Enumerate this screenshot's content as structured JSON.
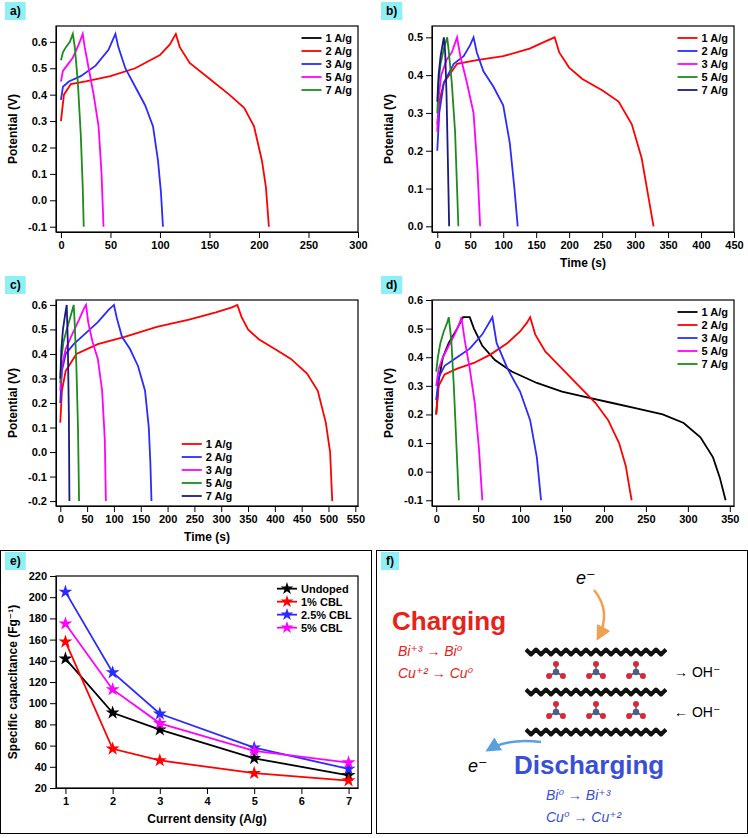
{
  "chart_data": [
    {
      "type": "line",
      "title": "a)",
      "y_label": "Potential (V)",
      "xlim": [
        -5,
        300
      ],
      "xticks": [
        0,
        50,
        100,
        150,
        200,
        250,
        300
      ],
      "ylim": [
        -0.12,
        0.66
      ],
      "yticks": [
        -0.1,
        {
          "value": 0,
          "label": "0.0"
        },
        0.1,
        0.2,
        0.3,
        0.4,
        0.5,
        0.6
      ],
      "grid": false,
      "legend": "upper right",
      "series": [
        {
          "name": "1 A/g",
          "color": "#000000",
          "x": [],
          "values": []
        },
        {
          "name": "2 A/g",
          "color": "#ff0000",
          "x": [
            0,
            3,
            10,
            25,
            50,
            75,
            100,
            110,
            116,
            120,
            130,
            150,
            170,
            185,
            195,
            203,
            207,
            210
          ],
          "values": [
            0.3,
            0.4,
            0.44,
            0.45,
            0.47,
            0.5,
            0.55,
            0.59,
            0.63,
            0.58,
            0.52,
            0.46,
            0.4,
            0.35,
            0.28,
            0.15,
            0.05,
            -0.1
          ]
        },
        {
          "name": "3 A/g",
          "color": "#2b2bff",
          "x": [
            0,
            2,
            8,
            20,
            35,
            48,
            55,
            58,
            65,
            75,
            85,
            93,
            98,
            101,
            103
          ],
          "values": [
            0.38,
            0.43,
            0.45,
            0.47,
            0.51,
            0.57,
            0.63,
            0.58,
            0.5,
            0.43,
            0.36,
            0.28,
            0.15,
            0.03,
            -0.1
          ]
        },
        {
          "name": "5 A/g",
          "color": "#ff00ff",
          "x": [
            0,
            2,
            6,
            12,
            18,
            22,
            24,
            28,
            33,
            38,
            41,
            43
          ],
          "values": [
            0.45,
            0.49,
            0.51,
            0.54,
            0.59,
            0.63,
            0.58,
            0.5,
            0.4,
            0.28,
            0.1,
            -0.1
          ]
        },
        {
          "name": "7 A/g",
          "color": "#1c8c1c",
          "x": [
            0,
            2,
            5,
            9,
            12,
            14,
            17,
            20,
            22,
            23
          ],
          "values": [
            0.53,
            0.56,
            0.58,
            0.6,
            0.63,
            0.58,
            0.45,
            0.25,
            0.05,
            -0.1
          ]
        }
      ]
    },
    {
      "type": "line",
      "title": "b)",
      "x_label": "Time (s)",
      "y_label": "Potential (V)",
      "xlim": [
        -8,
        450
      ],
      "xticks": [
        0,
        50,
        100,
        150,
        200,
        250,
        300,
        350,
        400,
        450
      ],
      "ylim": [
        -0.015,
        0.53
      ],
      "yticks": [
        {
          "value": 0,
          "label": "0.0"
        },
        0.1,
        0.2,
        0.3,
        0.4,
        0.5
      ],
      "grid": false,
      "legend": "upper right",
      "series": [
        {
          "name": "1 A/g",
          "color": "#ff0000",
          "x": [
            0,
            3,
            10,
            30,
            60,
            100,
            140,
            165,
            178,
            185,
            200,
            220,
            250,
            275,
            295,
            310,
            320,
            328
          ],
          "values": [
            0.27,
            0.33,
            0.38,
            0.43,
            0.44,
            0.45,
            0.47,
            0.49,
            0.5,
            0.46,
            0.42,
            0.39,
            0.36,
            0.33,
            0.27,
            0.18,
            0.08,
            0.0
          ]
        },
        {
          "name": "2 A/g",
          "color": "#2b2bff",
          "x": [
            0,
            3,
            10,
            25,
            40,
            50,
            55,
            60,
            70,
            85,
            100,
            110,
            117,
            122
          ],
          "values": [
            0.2,
            0.3,
            0.38,
            0.43,
            0.45,
            0.48,
            0.5,
            0.46,
            0.41,
            0.37,
            0.32,
            0.22,
            0.1,
            0.0
          ]
        },
        {
          "name": "3 A/g",
          "color": "#ff00ff",
          "x": [
            0,
            2,
            6,
            14,
            22,
            28,
            30,
            35,
            45,
            55,
            61,
            65
          ],
          "values": [
            0.25,
            0.34,
            0.4,
            0.44,
            0.46,
            0.49,
            0.5,
            0.45,
            0.38,
            0.3,
            0.15,
            0.0
          ]
        },
        {
          "name": "5 A/g",
          "color": "#1c8c1c",
          "x": [
            0,
            2,
            5,
            10,
            15,
            17,
            22,
            27,
            30,
            32
          ],
          "values": [
            0.3,
            0.38,
            0.43,
            0.47,
            0.5,
            0.47,
            0.38,
            0.25,
            0.1,
            0.0
          ]
        },
        {
          "name": "7 A/g",
          "color": "#1a1a80",
          "x": [
            0,
            2,
            5,
            8,
            10,
            12,
            14,
            16,
            18
          ],
          "values": [
            0.33,
            0.4,
            0.45,
            0.48,
            0.5,
            0.46,
            0.35,
            0.18,
            0.0
          ]
        }
      ]
    },
    {
      "type": "line",
      "title": "c)",
      "x_label": "Time (s)",
      "y_label": "Potential (V)",
      "xlim": [
        -8,
        555
      ],
      "xticks": [
        0,
        50,
        100,
        150,
        200,
        250,
        300,
        350,
        400,
        450,
        500,
        550
      ],
      "ylim": [
        -0.22,
        0.62
      ],
      "yticks": [
        -0.2,
        -0.1,
        {
          "value": 0,
          "label": "0.0"
        },
        0.1,
        0.2,
        0.3,
        0.4,
        0.5,
        0.6
      ],
      "grid": false,
      "legend": "lower center",
      "series": [
        {
          "name": "1 A/g",
          "color": "#ff0000",
          "x": [
            0,
            3,
            10,
            30,
            70,
            120,
            180,
            240,
            290,
            320,
            330,
            338,
            350,
            370,
            400,
            430,
            460,
            480,
            495,
            503,
            507
          ],
          "values": [
            0.12,
            0.25,
            0.33,
            0.4,
            0.44,
            0.47,
            0.51,
            0.54,
            0.57,
            0.59,
            0.6,
            0.55,
            0.5,
            0.46,
            0.42,
            0.38,
            0.32,
            0.25,
            0.12,
            0.0,
            -0.2
          ]
        },
        {
          "name": "2 A/g",
          "color": "#2b2bff",
          "x": [
            0,
            3,
            10,
            25,
            45,
            70,
            90,
            100,
            105,
            115,
            130,
            145,
            158,
            165,
            168,
            170
          ],
          "values": [
            0.2,
            0.33,
            0.4,
            0.44,
            0.48,
            0.53,
            0.58,
            0.6,
            0.55,
            0.47,
            0.42,
            0.35,
            0.25,
            0.1,
            -0.05,
            -0.2
          ]
        },
        {
          "name": "3 A/g",
          "color": "#ff00ff",
          "x": [
            0,
            3,
            10,
            20,
            35,
            45,
            48,
            52,
            60,
            70,
            78,
            83,
            85
          ],
          "values": [
            0.25,
            0.35,
            0.42,
            0.47,
            0.54,
            0.59,
            0.6,
            0.53,
            0.45,
            0.38,
            0.25,
            0.05,
            -0.2
          ]
        },
        {
          "name": "5 A/g",
          "color": "#1c8c1c",
          "x": [
            0,
            2,
            6,
            12,
            20,
            25,
            27,
            30,
            33,
            35
          ],
          "values": [
            0.28,
            0.38,
            0.45,
            0.5,
            0.56,
            0.6,
            0.52,
            0.35,
            0.1,
            -0.2
          ]
        },
        {
          "name": "7 A/g",
          "color": "#1a1a80",
          "x": [
            0,
            2,
            5,
            9,
            12,
            14,
            16,
            17
          ],
          "values": [
            0.3,
            0.42,
            0.5,
            0.56,
            0.6,
            0.45,
            0.15,
            -0.2
          ]
        }
      ]
    },
    {
      "type": "line",
      "title": "d)",
      "y_label": "Potential (V)",
      "xlim": [
        -5,
        355
      ],
      "xticks": [
        0,
        50,
        100,
        150,
        200,
        250,
        300,
        350
      ],
      "ylim": [
        -0.12,
        0.6
      ],
      "yticks": [
        -0.1,
        {
          "value": 0,
          "label": "0.0"
        },
        0.1,
        0.2,
        0.3,
        0.4,
        0.5,
        0.6
      ],
      "grid": false,
      "legend": "upper right",
      "series": [
        {
          "name": "1 A/g",
          "color": "#000000",
          "x": [
            0,
            3,
            8,
            15,
            25,
            32,
            40,
            45,
            55,
            70,
            90,
            120,
            150,
            180,
            210,
            240,
            270,
            295,
            315,
            330,
            338,
            345
          ],
          "values": [
            0.2,
            0.32,
            0.4,
            0.45,
            0.5,
            0.54,
            0.54,
            0.5,
            0.44,
            0.39,
            0.35,
            0.31,
            0.28,
            0.26,
            0.24,
            0.22,
            0.2,
            0.17,
            0.12,
            0.05,
            -0.02,
            -0.1
          ]
        },
        {
          "name": "2 A/g",
          "color": "#ff0000",
          "x": [
            0,
            3,
            10,
            25,
            45,
            65,
            85,
            100,
            108,
            112,
            118,
            130,
            150,
            170,
            190,
            205,
            218,
            226,
            230,
            233
          ],
          "values": [
            0.2,
            0.3,
            0.34,
            0.36,
            0.38,
            0.41,
            0.45,
            0.49,
            0.52,
            0.54,
            0.48,
            0.42,
            0.36,
            0.3,
            0.24,
            0.18,
            0.1,
            0.02,
            -0.05,
            -0.1
          ]
        },
        {
          "name": "3 A/g",
          "color": "#2b2bff",
          "x": [
            0,
            3,
            10,
            25,
            40,
            55,
            65,
            67,
            72,
            85,
            100,
            112,
            120,
            125
          ],
          "values": [
            0.25,
            0.33,
            0.37,
            0.4,
            0.43,
            0.48,
            0.53,
            0.54,
            0.45,
            0.36,
            0.28,
            0.18,
            0.05,
            -0.1
          ]
        },
        {
          "name": "5 A/g",
          "color": "#ff00ff",
          "x": [
            0,
            3,
            8,
            15,
            22,
            28,
            30,
            34,
            40,
            46,
            51,
            55
          ],
          "values": [
            0.3,
            0.36,
            0.4,
            0.44,
            0.48,
            0.52,
            0.54,
            0.46,
            0.36,
            0.24,
            0.08,
            -0.1
          ]
        },
        {
          "name": "7 A/g",
          "color": "#1c8c1c",
          "x": [
            0,
            2,
            5,
            9,
            13,
            15,
            18,
            21,
            24,
            27
          ],
          "values": [
            0.35,
            0.4,
            0.45,
            0.49,
            0.52,
            0.54,
            0.46,
            0.3,
            0.1,
            -0.1
          ]
        }
      ]
    },
    {
      "type": "line",
      "title": "e)",
      "x_label": "Current density (A/g)",
      "y_label": "Specific capacitance (Fg⁻¹)",
      "xlim": [
        0.8,
        7.2
      ],
      "xticks": [
        1,
        2,
        3,
        4,
        5,
        6,
        7
      ],
      "ylim": [
        20,
        220
      ],
      "yticks": [
        20,
        40,
        60,
        80,
        100,
        120,
        140,
        160,
        180,
        200,
        220
      ],
      "grid": false,
      "legend": "upper right",
      "marker": "star",
      "x": [
        1,
        2,
        3,
        5,
        7
      ],
      "series": [
        {
          "name": "Undoped",
          "color": "#000000",
          "values": [
            142,
            91,
            75,
            48,
            32
          ]
        },
        {
          "name": "1% CBL",
          "color": "#ff0000",
          "values": [
            158,
            57,
            46,
            34,
            27
          ]
        },
        {
          "name": "2.5% CBL",
          "color": "#2b2bff",
          "values": [
            205,
            129,
            90,
            58,
            38
          ]
        },
        {
          "name": "5% CBL",
          "color": "#ff00ff",
          "values": [
            175,
            113,
            81,
            55,
            44
          ]
        }
      ]
    }
  ],
  "diagram": {
    "title": "f)",
    "charging": {
      "label": "Charging",
      "reactions": [
        "Bi⁺³ → Bi⁰",
        "Cu⁺² → Cu⁰"
      ]
    },
    "discharging": {
      "label": "Discharging",
      "reactions": [
        "Bi⁰ → Bi⁺³",
        "Cu⁰ → Cu⁺²"
      ]
    },
    "electron_in": "e⁻",
    "electron_out": "e⁻",
    "ion_in": "→ OH⁻",
    "ion_out": "← OH⁻"
  }
}
